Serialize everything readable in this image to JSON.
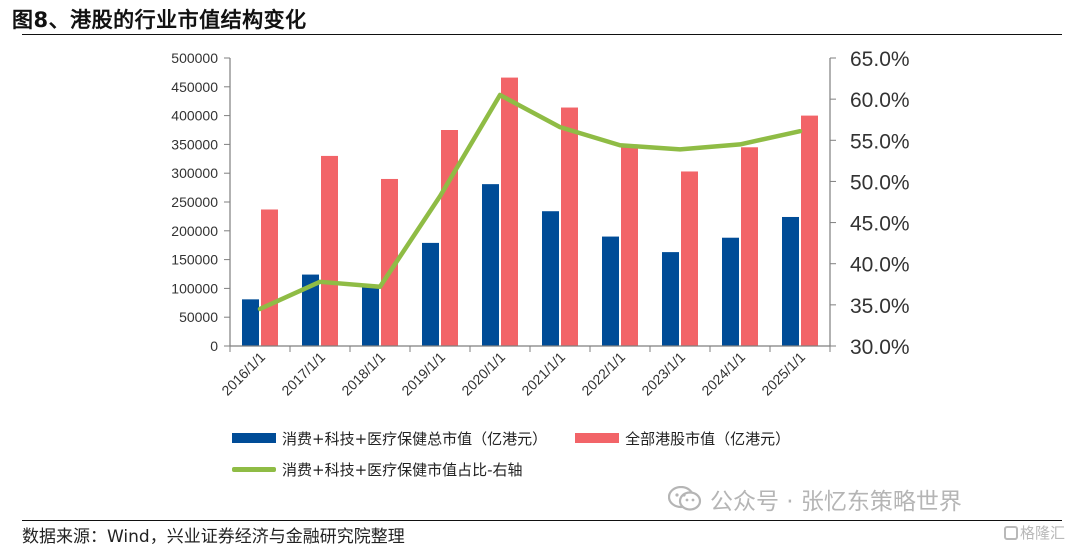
{
  "figure": {
    "title": "图8、港股的行业市值结构变化",
    "source": "数据来源：Wind，兴业证券经济与金融研究院整理"
  },
  "watermarks": {
    "wechat": "公众号 · 张忆东策略世界",
    "corner": "格隆汇"
  },
  "colors": {
    "series_tech_consumer_health": "#004C97",
    "series_total_hk": "#F26468",
    "series_share": "#8FBC45"
  },
  "chart_data": {
    "type": "bar",
    "categories": [
      "2016/1/1",
      "2017/1/1",
      "2018/1/1",
      "2019/1/1",
      "2020/1/1",
      "2021/1/1",
      "2022/1/1",
      "2023/1/1",
      "2024/1/1",
      "2025/1/1"
    ],
    "series": [
      {
        "name": "消费+科技+医疗保健总市值（亿港元）",
        "type": "bar",
        "axis": "left",
        "values": [
          81000,
          124000,
          103000,
          179000,
          281000,
          234000,
          190000,
          163000,
          188000,
          224000
        ]
      },
      {
        "name": "全部港股市值（亿港元）",
        "type": "bar",
        "axis": "left",
        "values": [
          237000,
          330000,
          290000,
          375000,
          466000,
          414000,
          346000,
          303000,
          345000,
          400000
        ]
      },
      {
        "name": "消费+科技+医疗保健市值占比-右轴",
        "type": "line",
        "axis": "right",
        "values": [
          34.5,
          37.8,
          37.2,
          48.2,
          60.5,
          56.6,
          54.4,
          53.9,
          54.5,
          56.1
        ]
      }
    ],
    "yLeft": {
      "min": 0,
      "max": 500000,
      "step": 50000,
      "ticks": [
        "0",
        "50000",
        "100000",
        "150000",
        "200000",
        "250000",
        "300000",
        "350000",
        "400000",
        "450000",
        "500000"
      ]
    },
    "yRight": {
      "min": 30,
      "max": 65,
      "step": 5,
      "ticks": [
        "30.0%",
        "35.0%",
        "40.0%",
        "45.0%",
        "50.0%",
        "55.0%",
        "60.0%",
        "65.0%"
      ]
    },
    "legend_position": "bottom",
    "grid": false
  }
}
